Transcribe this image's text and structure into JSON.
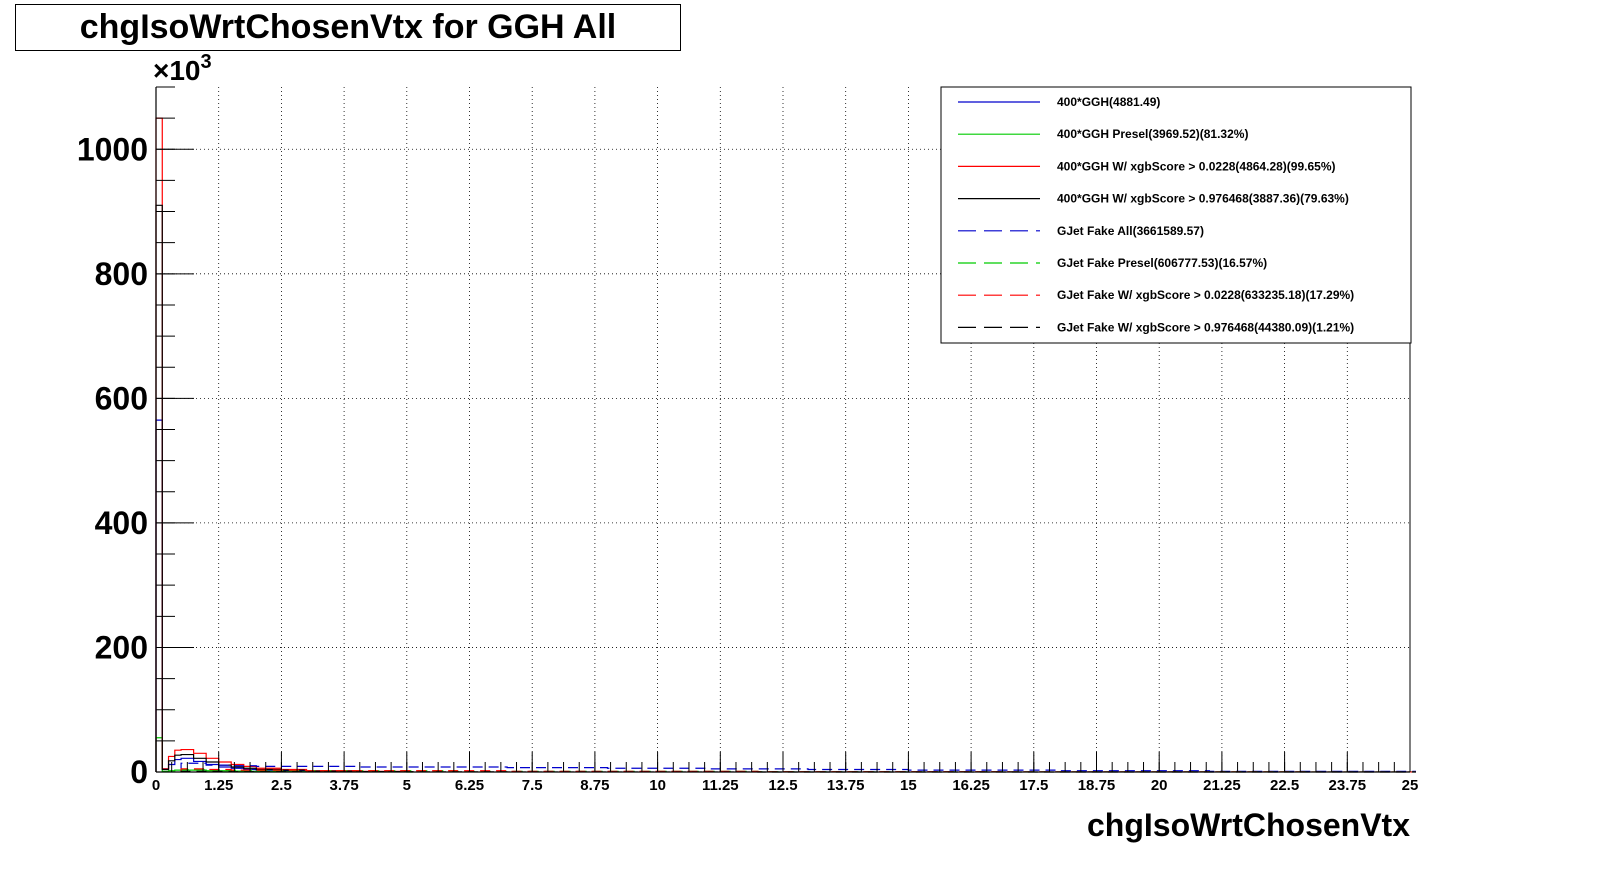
{
  "chart_data": {
    "type": "line",
    "title": "chgIsoWrtChosenVtx for GGH All",
    "xlabel": "chgIsoWrtChosenVtx",
    "ylabel": "",
    "y_multiplier_label": "×10",
    "y_multiplier_exponent": "3",
    "xlim": [
      0,
      25
    ],
    "ylim": [
      0,
      1100
    ],
    "x_ticks": [
      "0",
      "1.25",
      "2.5",
      "3.75",
      "5",
      "6.25",
      "7.5",
      "8.75",
      "10",
      "11.25",
      "12.5",
      "13.75",
      "15",
      "16.25",
      "17.5",
      "18.75",
      "20",
      "21.25",
      "22.5",
      "23.75",
      "25"
    ],
    "y_ticks": [
      "0",
      "200",
      "400",
      "600",
      "800",
      "1000"
    ],
    "grid": true,
    "legend_position": "top-right",
    "series": [
      {
        "name": "400*GGH(4881.49)",
        "color": "#0000cc",
        "dash": "solid",
        "x": [
          0,
          0.125,
          0.25,
          0.375,
          0.5,
          0.75,
          1.0,
          1.25,
          1.5,
          1.75,
          2.0,
          2.5,
          3.0,
          4.0,
          5.0
        ],
        "y": [
          565,
          5,
          12,
          20,
          22,
          17,
          12,
          8,
          6,
          4,
          3,
          2,
          1,
          0.5,
          0.2
        ]
      },
      {
        "name": "400*GGH Presel(3969.52)(81.32%)",
        "color": "#00cc00",
        "dash": "solid",
        "x": [
          0,
          0.125,
          0.25,
          0.375,
          0.5,
          0.75,
          1.0,
          1.25,
          1.5,
          1.75,
          2.0,
          2.5,
          3.0,
          4.0,
          5.0
        ],
        "y": [
          55,
          1,
          2,
          3,
          3,
          3,
          2,
          2,
          1.5,
          1,
          1,
          0.5,
          0.3,
          0.1,
          0
        ]
      },
      {
        "name": "400*GGH W/ xgbScore > 0.0228(4864.28)(99.65%)",
        "color": "#ff0000",
        "dash": "solid",
        "x": [
          0,
          0.125,
          0.25,
          0.375,
          0.5,
          0.75,
          1.0,
          1.25,
          1.5,
          1.75,
          2.0,
          2.5,
          3.0,
          4.0,
          5.0
        ],
        "y": [
          1050,
          5,
          25,
          35,
          36,
          30,
          22,
          16,
          12,
          9,
          6,
          4,
          2,
          1,
          0.3
        ]
      },
      {
        "name": "400*GGH W/ xgbScore > 0.976468(3887.36)(79.63%)",
        "color": "#000000",
        "dash": "solid",
        "x": [
          0,
          0.125,
          0.25,
          0.375,
          0.5,
          0.75,
          1.0,
          1.25,
          1.5,
          1.75,
          2.0,
          2.5,
          3.0,
          4.0,
          5.0
        ],
        "y": [
          910,
          4,
          18,
          27,
          28,
          22,
          16,
          11,
          8,
          6,
          4,
          3,
          1.5,
          0.7,
          0.2
        ]
      },
      {
        "name": "GJet Fake All(3661589.57)",
        "color": "#0000cc",
        "dash": "dashed",
        "x": [
          0.5,
          1,
          1.5,
          2,
          3,
          4,
          5,
          6,
          7,
          8,
          9,
          10,
          11,
          12,
          13,
          14,
          15,
          16,
          17,
          18,
          19,
          20,
          21,
          22,
          23,
          24,
          25
        ],
        "y": [
          14,
          11,
          10,
          9,
          9,
          8,
          8,
          8,
          7,
          7,
          6,
          6,
          5,
          5,
          4,
          4,
          3,
          3,
          3,
          2,
          2,
          2,
          1,
          1,
          1,
          1,
          1
        ]
      },
      {
        "name": "GJet Fake Presel(606777.53)(16.57%)",
        "color": "#00cc00",
        "dash": "dashed",
        "x": [
          0.5,
          1,
          1.5,
          2,
          3,
          4,
          5,
          6,
          7,
          8,
          9,
          10,
          11,
          12,
          13,
          14,
          15,
          16,
          17,
          18,
          19,
          20,
          21,
          22,
          23,
          24,
          25
        ],
        "y": [
          4,
          3,
          3,
          2,
          2,
          2,
          2,
          1,
          1,
          1,
          1,
          1,
          1,
          0.5,
          0.5,
          0.5,
          0.5,
          0.5,
          0.3,
          0.3,
          0.3,
          0.2,
          0.2,
          0.2,
          0.1,
          0.1,
          0.1
        ]
      },
      {
        "name": "GJet Fake W/ xgbScore > 0.0228(633235.18)(17.29%)",
        "color": "#ff0000",
        "dash": "dashed",
        "x": [
          0.5,
          1,
          1.5,
          2,
          3,
          4,
          5,
          6,
          7,
          8,
          9,
          10,
          11,
          12,
          13,
          14,
          15,
          16,
          17,
          18,
          19,
          20,
          21,
          22,
          23,
          24,
          25
        ],
        "y": [
          5,
          4,
          3,
          3,
          2,
          2,
          2,
          2,
          1,
          1,
          1,
          1,
          1,
          0.5,
          0.5,
          0.5,
          0.5,
          0.5,
          0.3,
          0.3,
          0.3,
          0.2,
          0.2,
          0.2,
          0.1,
          0.1,
          0.1
        ]
      },
      {
        "name": "GJet Fake W/ xgbScore > 0.976468(44380.09)(1.21%)",
        "color": "#000000",
        "dash": "dashed",
        "x": [
          0.5,
          1,
          1.5,
          2,
          3,
          4,
          5,
          6,
          7,
          8,
          9,
          10,
          11,
          12,
          13,
          14,
          15,
          16,
          17,
          18,
          19,
          20,
          21,
          22,
          23,
          24,
          25
        ],
        "y": [
          1,
          1,
          0.5,
          0.5,
          0.3,
          0.3,
          0.2,
          0.2,
          0.1,
          0.1,
          0.1,
          0.1,
          0.1,
          0,
          0,
          0,
          0,
          0,
          0,
          0,
          0,
          0,
          0,
          0,
          0,
          0,
          0
        ]
      }
    ]
  }
}
